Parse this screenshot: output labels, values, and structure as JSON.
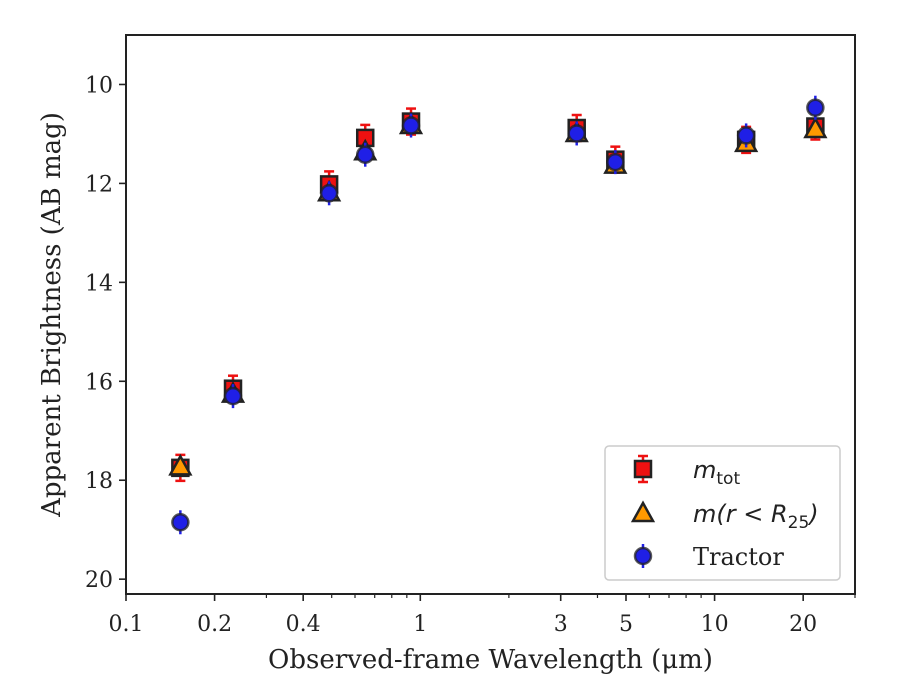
{
  "chart_data": {
    "type": "scatter",
    "xlabel": "Observed-frame Wavelength (μm)",
    "ylabel": "Apparent Brightness (AB mag)",
    "xscale": "log",
    "xlim": [
      0.1,
      30
    ],
    "ylim": [
      20.3,
      9.0
    ],
    "y_inverted": true,
    "x_ticks": [
      0.1,
      0.2,
      0.4,
      1,
      3,
      5,
      10,
      20
    ],
    "x_tick_labels": [
      "0.1",
      "0.2",
      "0.4",
      "1",
      "3",
      "5",
      "10",
      "20"
    ],
    "y_ticks": [
      10,
      12,
      14,
      16,
      18,
      20
    ],
    "y_tick_labels": [
      "10",
      "12",
      "14",
      "16",
      "18",
      "20"
    ],
    "grid": false,
    "legend_position": "lower-right",
    "series": [
      {
        "name": "m_tot",
        "label_main": "m",
        "label_sub": "tot",
        "marker": "square",
        "color": "#ee1111",
        "x": [
          0.153,
          0.231,
          0.49,
          0.65,
          0.93,
          3.4,
          4.6,
          12.8,
          22.0
        ],
        "y": [
          17.75,
          16.15,
          12.02,
          11.08,
          10.75,
          10.88,
          11.52,
          11.12,
          10.85
        ]
      },
      {
        "name": "m(r < R25)",
        "label_main": "m(r < R",
        "label_sub": "25",
        "label_tail": ")",
        "marker": "triangle",
        "color": "#ff9900",
        "x": [
          0.153,
          0.231,
          0.49,
          0.65,
          0.93,
          3.4,
          4.6,
          12.8,
          22.0
        ],
        "y": [
          17.72,
          16.25,
          12.18,
          11.35,
          10.82,
          10.98,
          11.62,
          11.18,
          10.9
        ]
      },
      {
        "name": "Tractor",
        "marker": "circle",
        "color": "#1f1fe6",
        "x": [
          0.153,
          0.231,
          0.49,
          0.65,
          0.93,
          3.4,
          4.6,
          12.8,
          22.0
        ],
        "y": [
          18.85,
          16.3,
          12.2,
          11.42,
          10.83,
          10.99,
          11.57,
          11.03,
          10.47
        ]
      }
    ]
  }
}
